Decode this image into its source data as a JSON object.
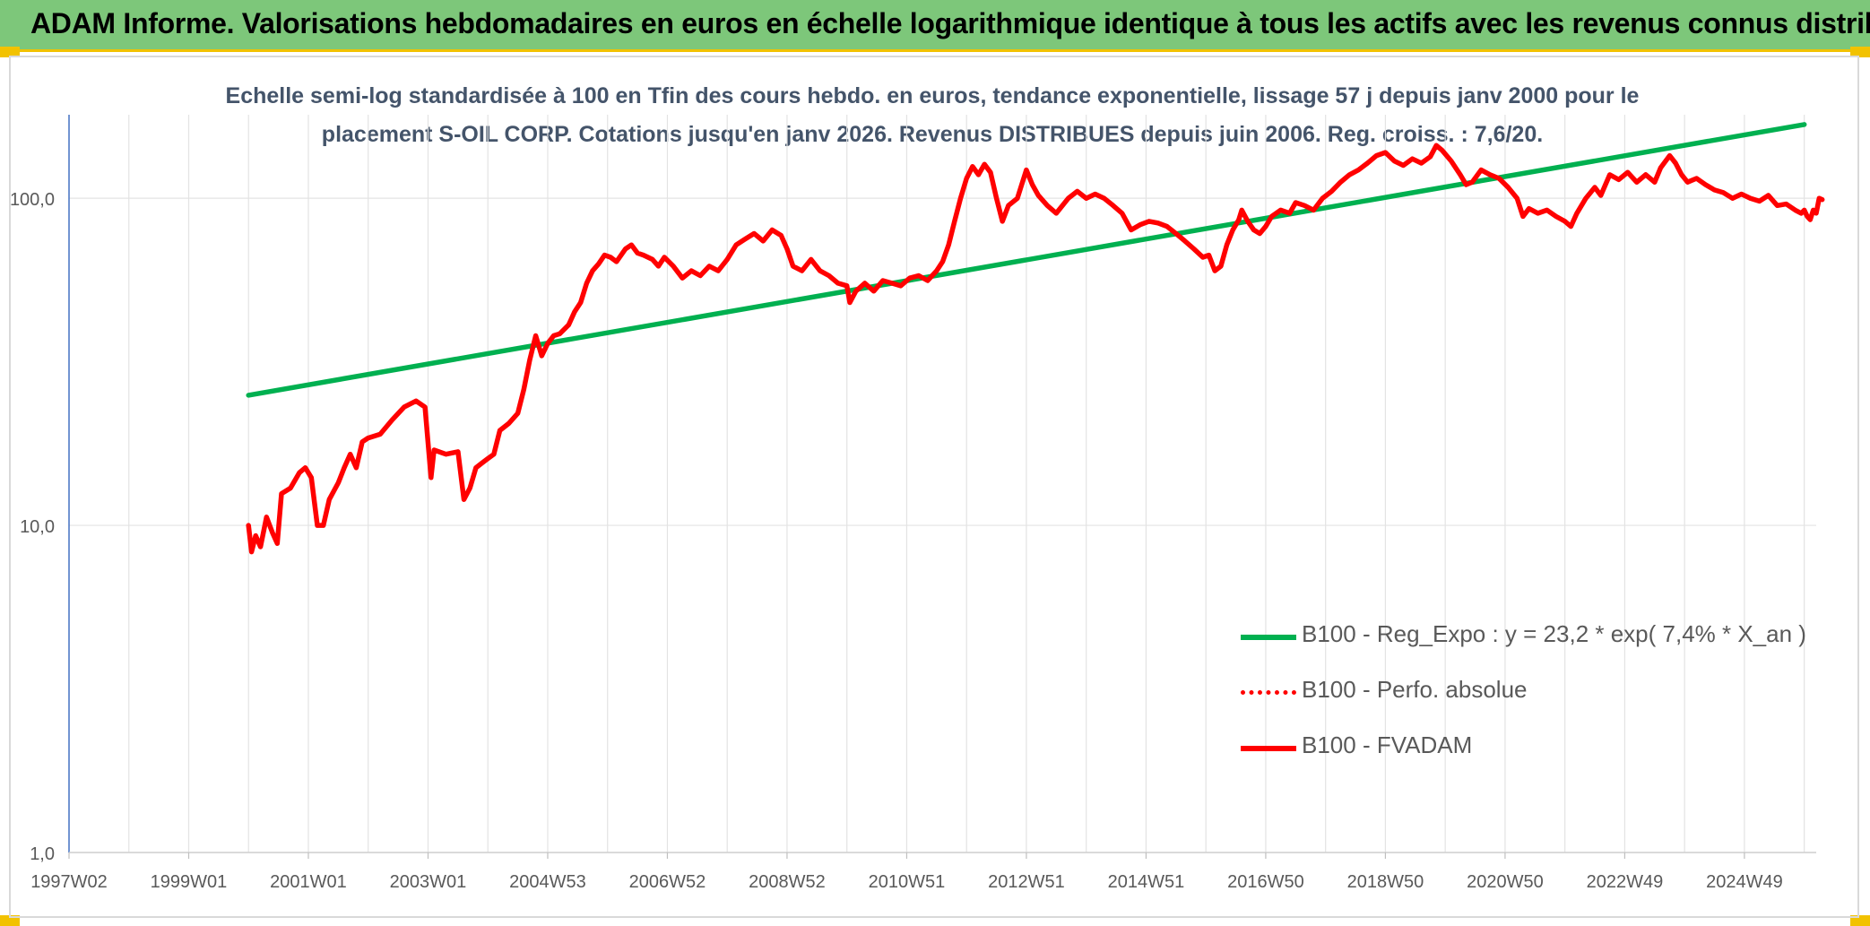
{
  "header": {
    "title": "ADAM Informe. Valorisations hebdomadaires en euros en échelle logarithmique identique à tous les actifs avec les revenus connus distribués"
  },
  "chart_data": {
    "type": "line",
    "title_line1": "Echelle semi-log standardisée à 100 en Tfin des cours hebdo. en euros, tendance exponentielle, lissage 57 j depuis janv 2000 pour le",
    "title_line2": "placement S-OIL CORP. Cotations jusqu'en janv 2026. Revenus DISTRIBUES depuis juin 2006. Reg. croiss. : 7,6/20.",
    "xlabel": "",
    "ylabel": "",
    "y_scale": "log",
    "ylim": [
      1,
      180
    ],
    "xlim": [
      1997.0,
      2026.2
    ],
    "y_ticks": [
      1,
      10,
      100
    ],
    "y_tick_labels": [
      "1,0",
      "10,0",
      "100,0"
    ],
    "x_tick_values": [
      1997.0,
      1999.0,
      2001.0,
      2003.0,
      2005.0,
      2007.0,
      2009.0,
      2011.0,
      2013.0,
      2015.0,
      2017.0,
      2019.0,
      2021.0,
      2023.0,
      2025.0
    ],
    "x_tick_labels": [
      "1997W02",
      "1999W01",
      "2001W01",
      "2003W01",
      "2004W53",
      "2006W52",
      "2008W52",
      "2010W51",
      "2012W51",
      "2014W51",
      "2016W50",
      "2018W50",
      "2020W50",
      "2022W49",
      "2024W49"
    ],
    "grid": "vertical-and-horizontal",
    "legend_position": "bottom-right",
    "series": [
      {
        "name": "B100 - Reg_Expo : y = 23,2 * exp( 7,4% *  X_an )",
        "color": "#00b050",
        "style": "solid",
        "points": [
          [
            2000.0,
            25.0
          ],
          [
            2026.0,
            168.0
          ]
        ]
      },
      {
        "name": "B100 - Perfo. absolue",
        "color": "#ff0000",
        "style": "dotted",
        "points": []
      },
      {
        "name": "B100 - FVADAM",
        "color": "#ff0000",
        "style": "solid",
        "points": [
          [
            2000.0,
            10.0
          ],
          [
            2000.05,
            8.3
          ],
          [
            2000.12,
            9.3
          ],
          [
            2000.2,
            8.6
          ],
          [
            2000.3,
            10.6
          ],
          [
            2000.4,
            9.5
          ],
          [
            2000.48,
            8.8
          ],
          [
            2000.55,
            12.5
          ],
          [
            2000.7,
            13.0
          ],
          [
            2000.85,
            14.5
          ],
          [
            2000.95,
            15.0
          ],
          [
            2001.05,
            14.0
          ],
          [
            2001.15,
            10.0
          ],
          [
            2001.25,
            10.0
          ],
          [
            2001.35,
            12.0
          ],
          [
            2001.5,
            13.5
          ],
          [
            2001.6,
            15.0
          ],
          [
            2001.7,
            16.5
          ],
          [
            2001.8,
            15.0
          ],
          [
            2001.9,
            18.0
          ],
          [
            2002.0,
            18.5
          ],
          [
            2002.2,
            19.0
          ],
          [
            2002.4,
            21.0
          ],
          [
            2002.6,
            23.0
          ],
          [
            2002.8,
            24.0
          ],
          [
            2002.95,
            23.0
          ],
          [
            2003.05,
            14.0
          ],
          [
            2003.1,
            17.0
          ],
          [
            2003.3,
            16.5
          ],
          [
            2003.5,
            16.8
          ],
          [
            2003.6,
            12.0
          ],
          [
            2003.7,
            13.0
          ],
          [
            2003.8,
            15.0
          ],
          [
            2003.9,
            15.5
          ],
          [
            2004.0,
            16.0
          ],
          [
            2004.1,
            16.5
          ],
          [
            2004.2,
            19.5
          ],
          [
            2004.35,
            20.5
          ],
          [
            2004.5,
            22.0
          ],
          [
            2004.6,
            26.0
          ],
          [
            2004.7,
            32.0
          ],
          [
            2004.8,
            38.0
          ],
          [
            2004.9,
            33.0
          ],
          [
            2005.0,
            36.0
          ],
          [
            2005.1,
            38.0
          ],
          [
            2005.2,
            38.5
          ],
          [
            2005.35,
            41.0
          ],
          [
            2005.45,
            45.0
          ],
          [
            2005.55,
            48.0
          ],
          [
            2005.65,
            55.0
          ],
          [
            2005.75,
            60.0
          ],
          [
            2005.85,
            63.0
          ],
          [
            2005.95,
            67.0
          ],
          [
            2006.05,
            66.0
          ],
          [
            2006.15,
            64.0
          ],
          [
            2006.3,
            70.0
          ],
          [
            2006.4,
            72.0
          ],
          [
            2006.5,
            68.0
          ],
          [
            2006.6,
            67.0
          ],
          [
            2006.75,
            65.0
          ],
          [
            2006.85,
            62.0
          ],
          [
            2006.95,
            66.0
          ],
          [
            2007.1,
            62.0
          ],
          [
            2007.25,
            57.0
          ],
          [
            2007.4,
            60.0
          ],
          [
            2007.55,
            58.0
          ],
          [
            2007.7,
            62.0
          ],
          [
            2007.85,
            60.0
          ],
          [
            2008.0,
            65.0
          ],
          [
            2008.15,
            72.0
          ],
          [
            2008.3,
            75.0
          ],
          [
            2008.45,
            78.0
          ],
          [
            2008.6,
            74.0
          ],
          [
            2008.75,
            80.0
          ],
          [
            2008.9,
            77.0
          ],
          [
            2009.0,
            70.0
          ],
          [
            2009.1,
            62.0
          ],
          [
            2009.25,
            60.0
          ],
          [
            2009.4,
            65.0
          ],
          [
            2009.55,
            60.0
          ],
          [
            2009.7,
            58.0
          ],
          [
            2009.85,
            55.0
          ],
          [
            2010.0,
            54.0
          ],
          [
            2010.05,
            48.0
          ],
          [
            2010.15,
            52.0
          ],
          [
            2010.3,
            55.0
          ],
          [
            2010.45,
            52.0
          ],
          [
            2010.6,
            56.0
          ],
          [
            2010.75,
            55.0
          ],
          [
            2010.9,
            54.0
          ],
          [
            2011.05,
            57.0
          ],
          [
            2011.2,
            58.0
          ],
          [
            2011.35,
            56.0
          ],
          [
            2011.5,
            60.0
          ],
          [
            2011.6,
            64.0
          ],
          [
            2011.7,
            72.0
          ],
          [
            2011.8,
            85.0
          ],
          [
            2011.9,
            100.0
          ],
          [
            2012.0,
            115.0
          ],
          [
            2012.1,
            125.0
          ],
          [
            2012.2,
            118.0
          ],
          [
            2012.3,
            127.0
          ],
          [
            2012.4,
            120.0
          ],
          [
            2012.5,
            100.0
          ],
          [
            2012.6,
            85.0
          ],
          [
            2012.7,
            95.0
          ],
          [
            2012.85,
            100.0
          ],
          [
            2013.0,
            122.0
          ],
          [
            2013.1,
            110.0
          ],
          [
            2013.2,
            102.0
          ],
          [
            2013.35,
            95.0
          ],
          [
            2013.5,
            90.0
          ],
          [
            2013.7,
            100.0
          ],
          [
            2013.85,
            105.0
          ],
          [
            2014.0,
            100.0
          ],
          [
            2014.15,
            103.0
          ],
          [
            2014.3,
            100.0
          ],
          [
            2014.45,
            95.0
          ],
          [
            2014.6,
            90.0
          ],
          [
            2014.75,
            80.0
          ],
          [
            2014.9,
            83.0
          ],
          [
            2015.05,
            85.0
          ],
          [
            2015.2,
            84.0
          ],
          [
            2015.35,
            82.0
          ],
          [
            2015.5,
            78.0
          ],
          [
            2015.65,
            74.0
          ],
          [
            2015.8,
            70.0
          ],
          [
            2015.95,
            66.0
          ],
          [
            2016.05,
            67.0
          ],
          [
            2016.15,
            60.0
          ],
          [
            2016.25,
            62.0
          ],
          [
            2016.35,
            72.0
          ],
          [
            2016.45,
            80.0
          ],
          [
            2016.55,
            86.0
          ],
          [
            2016.6,
            92.0
          ],
          [
            2016.7,
            85.0
          ],
          [
            2016.8,
            80.0
          ],
          [
            2016.9,
            78.0
          ],
          [
            2017.0,
            82.0
          ],
          [
            2017.1,
            88.0
          ],
          [
            2017.25,
            92.0
          ],
          [
            2017.4,
            90.0
          ],
          [
            2017.5,
            97.0
          ],
          [
            2017.65,
            95.0
          ],
          [
            2017.8,
            92.0
          ],
          [
            2017.95,
            100.0
          ],
          [
            2018.1,
            105.0
          ],
          [
            2018.25,
            112.0
          ],
          [
            2018.4,
            118.0
          ],
          [
            2018.55,
            122.0
          ],
          [
            2018.7,
            128.0
          ],
          [
            2018.85,
            135.0
          ],
          [
            2019.0,
            138.0
          ],
          [
            2019.15,
            130.0
          ],
          [
            2019.3,
            126.0
          ],
          [
            2019.45,
            132.0
          ],
          [
            2019.6,
            128.0
          ],
          [
            2019.75,
            134.0
          ],
          [
            2019.85,
            145.0
          ],
          [
            2019.95,
            140.0
          ],
          [
            2020.1,
            130.0
          ],
          [
            2020.25,
            118.0
          ],
          [
            2020.35,
            110.0
          ],
          [
            2020.45,
            112.0
          ],
          [
            2020.6,
            122.0
          ],
          [
            2020.75,
            118.0
          ],
          [
            2020.9,
            115.0
          ],
          [
            2021.05,
            108.0
          ],
          [
            2021.2,
            100.0
          ],
          [
            2021.3,
            88.0
          ],
          [
            2021.4,
            93.0
          ],
          [
            2021.55,
            90.0
          ],
          [
            2021.7,
            92.0
          ],
          [
            2021.85,
            88.0
          ],
          [
            2022.0,
            85.0
          ],
          [
            2022.1,
            82.0
          ],
          [
            2022.2,
            90.0
          ],
          [
            2022.35,
            100.0
          ],
          [
            2022.5,
            108.0
          ],
          [
            2022.6,
            102.0
          ],
          [
            2022.75,
            118.0
          ],
          [
            2022.9,
            114.0
          ],
          [
            2023.05,
            120.0
          ],
          [
            2023.2,
            112.0
          ],
          [
            2023.35,
            118.0
          ],
          [
            2023.5,
            112.0
          ],
          [
            2023.6,
            124.0
          ],
          [
            2023.75,
            135.0
          ],
          [
            2023.85,
            128.0
          ],
          [
            2023.95,
            118.0
          ],
          [
            2024.05,
            112.0
          ],
          [
            2024.2,
            115.0
          ],
          [
            2024.35,
            110.0
          ],
          [
            2024.5,
            106.0
          ],
          [
            2024.65,
            104.0
          ],
          [
            2024.8,
            100.0
          ],
          [
            2024.95,
            103.0
          ],
          [
            2025.1,
            100.0
          ],
          [
            2025.25,
            98.0
          ],
          [
            2025.4,
            102.0
          ],
          [
            2025.55,
            95.0
          ],
          [
            2025.7,
            96.0
          ],
          [
            2025.85,
            92.0
          ],
          [
            2025.95,
            90.0
          ],
          [
            2026.0,
            92.0
          ],
          [
            2026.05,
            88.0
          ],
          [
            2026.1,
            86.0
          ],
          [
            2026.15,
            92.0
          ],
          [
            2026.2,
            90.0
          ],
          [
            2026.25,
            100.0
          ],
          [
            2026.3,
            99.0
          ]
        ]
      }
    ]
  }
}
